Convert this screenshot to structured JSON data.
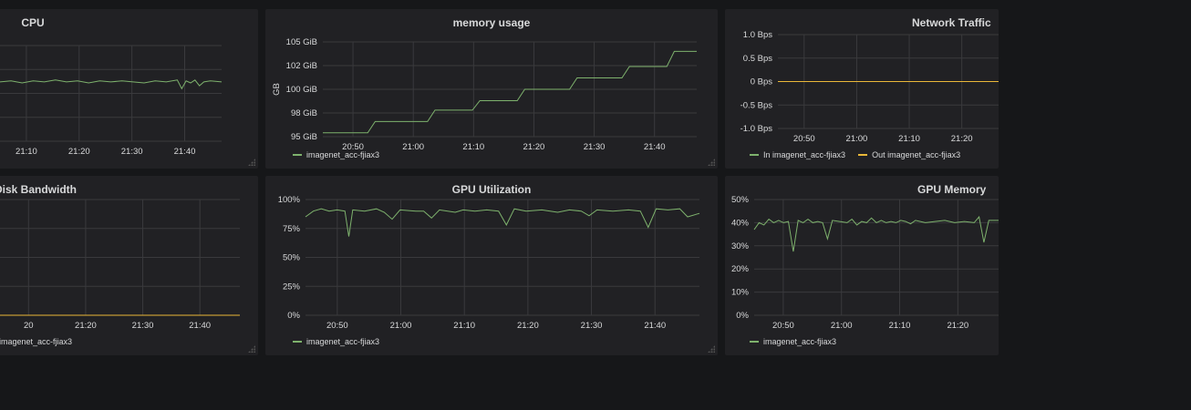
{
  "colors": {
    "green": "#7eb26d",
    "yellow": "#eab839",
    "grid": "#3a3a3d",
    "text": "#d8d9da"
  },
  "panels": {
    "cpu": {
      "title": "CPU"
    },
    "memory": {
      "title": "memory usage"
    },
    "network": {
      "title": "Network Traffic"
    },
    "disk": {
      "title": "Disk Bandwidth"
    },
    "gpu_util": {
      "title": "GPU Utilization"
    },
    "gpu_mem": {
      "title": "GPU Memory"
    }
  },
  "chart_data": [
    {
      "id": "cpu",
      "type": "line",
      "title": "CPU",
      "x_ticks": [
        "21:10",
        "21:20",
        "21:30",
        "21:40"
      ],
      "y_ticks": [],
      "legend": [],
      "series": [
        {
          "color": "#7eb26d",
          "points": [
            [
              0,
              0.62
            ],
            [
              0.05,
              0.63
            ],
            [
              0.1,
              0.61
            ],
            [
              0.15,
              0.63
            ],
            [
              0.2,
              0.62
            ],
            [
              0.25,
              0.64
            ],
            [
              0.3,
              0.62
            ],
            [
              0.35,
              0.63
            ],
            [
              0.4,
              0.61
            ],
            [
              0.45,
              0.63
            ],
            [
              0.5,
              0.62
            ],
            [
              0.55,
              0.63
            ],
            [
              0.6,
              0.62
            ],
            [
              0.65,
              0.61
            ],
            [
              0.7,
              0.63
            ],
            [
              0.75,
              0.62
            ],
            [
              0.8,
              0.64
            ],
            [
              0.82,
              0.55
            ],
            [
              0.84,
              0.63
            ],
            [
              0.86,
              0.61
            ],
            [
              0.88,
              0.64
            ],
            [
              0.9,
              0.58
            ],
            [
              0.92,
              0.62
            ],
            [
              0.95,
              0.63
            ],
            [
              1,
              0.62
            ]
          ]
        }
      ]
    },
    {
      "id": "memory",
      "type": "line",
      "title": "memory usage",
      "ylabel": "GB",
      "x_ticks": [
        "20:50",
        "21:00",
        "21:10",
        "21:20",
        "21:30",
        "21:40"
      ],
      "y_ticks": [
        "105 GiB",
        "102 GiB",
        "100 GiB",
        "98 GiB",
        "95 GiB"
      ],
      "legend": [
        {
          "label": "imagenet_acc-fjiax3",
          "color": "#7eb26d"
        }
      ],
      "series": [
        {
          "color": "#7eb26d",
          "points": [
            [
              0,
              0.04
            ],
            [
              0.12,
              0.04
            ],
            [
              0.14,
              0.16
            ],
            [
              0.28,
              0.16
            ],
            [
              0.3,
              0.28
            ],
            [
              0.4,
              0.28
            ],
            [
              0.42,
              0.38
            ],
            [
              0.52,
              0.38
            ],
            [
              0.54,
              0.5
            ],
            [
              0.66,
              0.5
            ],
            [
              0.68,
              0.62
            ],
            [
              0.8,
              0.62
            ],
            [
              0.82,
              0.74
            ],
            [
              0.92,
              0.74
            ],
            [
              0.94,
              0.9
            ],
            [
              1,
              0.9
            ]
          ]
        }
      ]
    },
    {
      "id": "network",
      "type": "line",
      "title": "Network Traffic",
      "x_ticks": [
        "20:50",
        "21:00",
        "21:10",
        "21:20"
      ],
      "y_ticks": [
        "1.0 Bps",
        "0.5 Bps",
        "0 Bps",
        "-0.5 Bps",
        "-1.0 Bps"
      ],
      "legend": [
        {
          "label": "In imagenet_acc-fjiax3",
          "color": "#7eb26d"
        },
        {
          "label": "Out imagenet_acc-fjiax3",
          "color": "#eab839"
        }
      ],
      "series": [
        {
          "color": "#7eb26d",
          "points": [
            [
              0,
              0.5
            ],
            [
              1,
              0.5
            ]
          ]
        },
        {
          "color": "#eab839",
          "points": [
            [
              0,
              0.5
            ],
            [
              1,
              0.5
            ]
          ]
        }
      ]
    },
    {
      "id": "disk",
      "type": "line",
      "title": "Disk Bandwidth",
      "x_ticks": [
        "20",
        "21:20",
        "21:30",
        "21:40"
      ],
      "y_ticks": [],
      "legend": [
        {
          "label": "imagenet_acc-fjiax3",
          "color": "#7eb26d"
        }
      ],
      "series": [
        {
          "color": "#7eb26d",
          "points": [
            [
              0,
              0
            ],
            [
              1,
              0
            ]
          ]
        },
        {
          "color": "#eab839",
          "points": [
            [
              0,
              0
            ],
            [
              1,
              0
            ]
          ]
        }
      ]
    },
    {
      "id": "gpu_util",
      "type": "line",
      "title": "GPU Utilization",
      "x_ticks": [
        "20:50",
        "21:00",
        "21:10",
        "21:20",
        "21:30",
        "21:40"
      ],
      "y_ticks": [
        "100%",
        "75%",
        "50%",
        "25%",
        "0%"
      ],
      "legend": [
        {
          "label": "imagenet_acc-fjiax3",
          "color": "#7eb26d"
        }
      ],
      "series": [
        {
          "color": "#7eb26d",
          "points": [
            [
              0,
              0.85
            ],
            [
              0.02,
              0.9
            ],
            [
              0.04,
              0.92
            ],
            [
              0.06,
              0.9
            ],
            [
              0.08,
              0.91
            ],
            [
              0.1,
              0.9
            ],
            [
              0.11,
              0.68
            ],
            [
              0.12,
              0.91
            ],
            [
              0.15,
              0.9
            ],
            [
              0.18,
              0.92
            ],
            [
              0.2,
              0.89
            ],
            [
              0.22,
              0.83
            ],
            [
              0.24,
              0.91
            ],
            [
              0.28,
              0.9
            ],
            [
              0.3,
              0.9
            ],
            [
              0.32,
              0.84
            ],
            [
              0.34,
              0.91
            ],
            [
              0.38,
              0.89
            ],
            [
              0.4,
              0.91
            ],
            [
              0.43,
              0.9
            ],
            [
              0.46,
              0.91
            ],
            [
              0.49,
              0.9
            ],
            [
              0.51,
              0.78
            ],
            [
              0.53,
              0.92
            ],
            [
              0.56,
              0.9
            ],
            [
              0.6,
              0.91
            ],
            [
              0.64,
              0.89
            ],
            [
              0.67,
              0.91
            ],
            [
              0.7,
              0.9
            ],
            [
              0.72,
              0.86
            ],
            [
              0.74,
              0.91
            ],
            [
              0.78,
              0.9
            ],
            [
              0.82,
              0.91
            ],
            [
              0.85,
              0.9
            ],
            [
              0.87,
              0.76
            ],
            [
              0.89,
              0.92
            ],
            [
              0.92,
              0.91
            ],
            [
              0.95,
              0.92
            ],
            [
              0.97,
              0.85
            ],
            [
              1,
              0.88
            ]
          ]
        }
      ]
    },
    {
      "id": "gpu_mem",
      "type": "line",
      "title": "GPU Memory",
      "x_ticks": [
        "20:50",
        "21:00",
        "21:10",
        "21:20"
      ],
      "y_ticks": [
        "50%",
        "40%",
        "30%",
        "20%",
        "10%",
        "0%"
      ],
      "legend": [
        {
          "label": "imagenet_acc-fjiax3",
          "color": "#7eb26d"
        }
      ],
      "series": [
        {
          "color": "#7eb26d",
          "points": [
            [
              0,
              0.74
            ],
            [
              0.02,
              0.8
            ],
            [
              0.04,
              0.78
            ],
            [
              0.06,
              0.83
            ],
            [
              0.08,
              0.8
            ],
            [
              0.1,
              0.82
            ],
            [
              0.12,
              0.8
            ],
            [
              0.14,
              0.81
            ],
            [
              0.16,
              0.55
            ],
            [
              0.18,
              0.82
            ],
            [
              0.2,
              0.8
            ],
            [
              0.22,
              0.83
            ],
            [
              0.24,
              0.8
            ],
            [
              0.26,
              0.81
            ],
            [
              0.28,
              0.8
            ],
            [
              0.3,
              0.66
            ],
            [
              0.32,
              0.82
            ],
            [
              0.35,
              0.81
            ],
            [
              0.38,
              0.8
            ],
            [
              0.4,
              0.83
            ],
            [
              0.42,
              0.78
            ],
            [
              0.44,
              0.81
            ],
            [
              0.46,
              0.8
            ],
            [
              0.48,
              0.84
            ],
            [
              0.5,
              0.8
            ],
            [
              0.52,
              0.82
            ],
            [
              0.54,
              0.8
            ],
            [
              0.56,
              0.81
            ],
            [
              0.58,
              0.8
            ],
            [
              0.6,
              0.82
            ],
            [
              0.62,
              0.81
            ],
            [
              0.64,
              0.79
            ],
            [
              0.66,
              0.82
            ],
            [
              0.7,
              0.8
            ],
            [
              0.74,
              0.81
            ],
            [
              0.78,
              0.82
            ],
            [
              0.82,
              0.8
            ],
            [
              0.86,
              0.81
            ],
            [
              0.9,
              0.8
            ],
            [
              0.92,
              0.85
            ],
            [
              0.94,
              0.63
            ],
            [
              0.96,
              0.82
            ],
            [
              1,
              0.82
            ]
          ]
        }
      ]
    }
  ]
}
